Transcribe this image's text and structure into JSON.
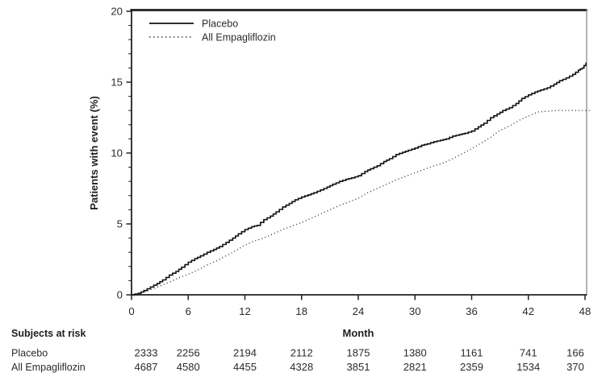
{
  "chart_data": {
    "type": "line",
    "subtype": "kaplan-meier-cumulative-incidence-step",
    "title": "",
    "xlabel": "Month",
    "ylabel": "Patients with event (%)",
    "xlim": [
      0,
      48
    ],
    "ylim": [
      0,
      20
    ],
    "xticks": [
      0,
      6,
      12,
      18,
      24,
      30,
      36,
      42,
      48
    ],
    "yticks": [
      0,
      5,
      10,
      15,
      20
    ],
    "y_minor_step": 1,
    "grid": "off",
    "legend_position": "top-left-inside",
    "series": [
      {
        "name": "Placebo",
        "style": "solid",
        "color": "#111111",
        "points": [
          [
            0,
            0
          ],
          [
            0.7,
            0.1
          ],
          [
            1.3,
            0.3
          ],
          [
            2,
            0.55
          ],
          [
            2.7,
            0.8
          ],
          [
            3.3,
            1.05
          ],
          [
            4,
            1.4
          ],
          [
            4.7,
            1.65
          ],
          [
            5.3,
            1.95
          ],
          [
            6,
            2.3
          ],
          [
            6.7,
            2.55
          ],
          [
            7.3,
            2.75
          ],
          [
            8,
            3
          ],
          [
            8.7,
            3.2
          ],
          [
            9.3,
            3.4
          ],
          [
            10,
            3.7
          ],
          [
            10.7,
            4
          ],
          [
            11.3,
            4.3
          ],
          [
            12,
            4.6
          ],
          [
            12.7,
            4.8
          ],
          [
            13.3,
            4.9
          ],
          [
            14,
            5.3
          ],
          [
            14.7,
            5.55
          ],
          [
            15.3,
            5.85
          ],
          [
            16,
            6.2
          ],
          [
            16.7,
            6.45
          ],
          [
            17.3,
            6.7
          ],
          [
            18,
            6.9
          ],
          [
            18.7,
            7.05
          ],
          [
            19.3,
            7.2
          ],
          [
            20,
            7.4
          ],
          [
            20.7,
            7.6
          ],
          [
            21.3,
            7.8
          ],
          [
            22,
            8
          ],
          [
            22.7,
            8.15
          ],
          [
            23.3,
            8.25
          ],
          [
            24,
            8.4
          ],
          [
            24.7,
            8.7
          ],
          [
            25.3,
            8.9
          ],
          [
            26,
            9.1
          ],
          [
            26.7,
            9.4
          ],
          [
            27.3,
            9.6
          ],
          [
            28,
            9.9
          ],
          [
            28.7,
            10.05
          ],
          [
            29.3,
            10.2
          ],
          [
            30,
            10.35
          ],
          [
            30.7,
            10.55
          ],
          [
            31.3,
            10.65
          ],
          [
            32,
            10.8
          ],
          [
            32.7,
            10.9
          ],
          [
            33.3,
            11
          ],
          [
            34,
            11.2
          ],
          [
            34.7,
            11.3
          ],
          [
            35.3,
            11.4
          ],
          [
            36,
            11.55
          ],
          [
            36.7,
            11.85
          ],
          [
            37.3,
            12.1
          ],
          [
            38,
            12.5
          ],
          [
            38.7,
            12.75
          ],
          [
            39.3,
            13
          ],
          [
            40,
            13.2
          ],
          [
            40.7,
            13.5
          ],
          [
            41.3,
            13.85
          ],
          [
            42,
            14.1
          ],
          [
            42.7,
            14.3
          ],
          [
            43.3,
            14.45
          ],
          [
            44,
            14.6
          ],
          [
            44.7,
            14.85
          ],
          [
            45.3,
            15.1
          ],
          [
            46,
            15.3
          ],
          [
            46.7,
            15.55
          ],
          [
            47.3,
            15.85
          ],
          [
            47.7,
            16
          ],
          [
            48.1,
            16.35
          ],
          [
            48.55,
            16.35
          ]
        ]
      },
      {
        "name": "All Empagliflozin",
        "style": "dotted",
        "color": "#333333",
        "points": [
          [
            0,
            0
          ],
          [
            1,
            0.15
          ],
          [
            2,
            0.35
          ],
          [
            3,
            0.6
          ],
          [
            4,
            0.9
          ],
          [
            5,
            1.2
          ],
          [
            6,
            1.45
          ],
          [
            7,
            1.75
          ],
          [
            8,
            2.1
          ],
          [
            9,
            2.4
          ],
          [
            10,
            2.75
          ],
          [
            11,
            3.1
          ],
          [
            12,
            3.5
          ],
          [
            13,
            3.8
          ],
          [
            14,
            4
          ],
          [
            15,
            4.3
          ],
          [
            16,
            4.6
          ],
          [
            17,
            4.85
          ],
          [
            18,
            5.1
          ],
          [
            19,
            5.4
          ],
          [
            20,
            5.7
          ],
          [
            21,
            6
          ],
          [
            22,
            6.3
          ],
          [
            23,
            6.55
          ],
          [
            24,
            6.8
          ],
          [
            25,
            7.2
          ],
          [
            26,
            7.5
          ],
          [
            27,
            7.8
          ],
          [
            28,
            8.1
          ],
          [
            29,
            8.35
          ],
          [
            30,
            8.6
          ],
          [
            31,
            8.85
          ],
          [
            32,
            9.1
          ],
          [
            33,
            9.3
          ],
          [
            34,
            9.6
          ],
          [
            35,
            9.95
          ],
          [
            36,
            10.3
          ],
          [
            37,
            10.7
          ],
          [
            38,
            11.1
          ],
          [
            39,
            11.6
          ],
          [
            40,
            11.9
          ],
          [
            41,
            12.3
          ],
          [
            42,
            12.6
          ],
          [
            43,
            12.9
          ],
          [
            44,
            12.95
          ],
          [
            45,
            13
          ],
          [
            48.55,
            13
          ]
        ]
      }
    ]
  },
  "legend": {
    "items": [
      {
        "label": "Placebo",
        "style": "solid"
      },
      {
        "label": "All Empagliflozin",
        "style": "dotted"
      }
    ]
  },
  "risk_table": {
    "title": "Subjects at risk",
    "months": [
      0,
      6,
      12,
      18,
      24,
      30,
      36,
      42,
      48
    ],
    "rows": [
      {
        "label": "Placebo",
        "values": [
          2333,
          2256,
          2194,
          2112,
          1875,
          1380,
          1161,
          741,
          166
        ]
      },
      {
        "label": "All Empagliflozin",
        "values": [
          4687,
          4580,
          4455,
          4328,
          3851,
          2821,
          2359,
          1534,
          370
        ]
      }
    ]
  },
  "colors": {
    "curve": "#111111",
    "axis": "#222222",
    "frame_top": "#2e2e2e",
    "frame_right": "#8c8c8c",
    "text": "#2b2b2b"
  }
}
